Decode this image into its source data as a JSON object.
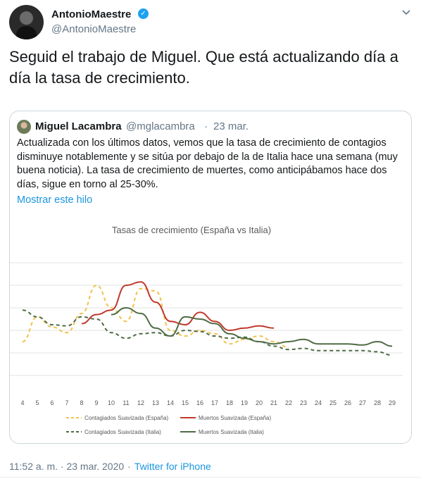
{
  "tweet": {
    "author_name": "AntonioMaestre",
    "author_handle": "@AntonioMaestre",
    "text": "Seguid el trabajo de Miguel. Que está actualizando día a día la tasa de crecimiento.",
    "timestamp": "11:52 a. m. · 23 mar. 2020",
    "separator": "·",
    "source": "Twitter for iPhone"
  },
  "quote": {
    "author_name": "Miguel Lacambra",
    "author_handle": "@mglacambra",
    "dot": "·",
    "date": "23 mar.",
    "text": "Actualizada con los últimos datos, vemos que la tasa de crecimiento de contagios disminuye notablemente y se sitúa por debajo de la de Italia hace una semana (muy buena noticia). La tasa de crecimiento de muertes, como anticipábamos hace dos días, sigue en torno al 25-30%.",
    "show_thread": "Mostrar este hilo"
  },
  "icons": {
    "verified": "verified-badge-icon",
    "menu": "chevron-down-icon"
  },
  "colors": {
    "link": "#1b95e0",
    "verified": "#1da1f2",
    "spain": "#f2c14e",
    "spain_deaths": "#c0392b",
    "italy": "#4f6b45"
  },
  "chart_data": {
    "type": "line",
    "title": "Tasas de crecimiento (España vs Italia)",
    "x": [
      4,
      5,
      6,
      7,
      8,
      9,
      10,
      11,
      12,
      13,
      14,
      15,
      16,
      17,
      18,
      19,
      20,
      21,
      22,
      23,
      24,
      25,
      26,
      27,
      28,
      29
    ],
    "ylim": [
      0,
      100
    ],
    "grid": true,
    "legend_position": "bottom",
    "series": [
      {
        "name": "Contagiados Suavizada (España)",
        "style": "dashed",
        "color": "#f2c14e",
        "values": [
          30,
          52,
          43,
          38,
          55,
          80,
          60,
          48,
          77,
          75,
          40,
          35,
          40,
          37,
          28,
          32,
          35,
          30,
          25,
          null,
          null,
          null,
          null,
          null,
          null,
          null
        ]
      },
      {
        "name": "Muertos Suavizada (España)",
        "style": "solid",
        "color": "#c0392b",
        "values": [
          null,
          null,
          null,
          null,
          46,
          54,
          58,
          80,
          83,
          65,
          48,
          45,
          56,
          48,
          40,
          42,
          44,
          42,
          null,
          null,
          null,
          null,
          null,
          null,
          null,
          null
        ]
      },
      {
        "name": "Contagiados Suavizada (Italia)",
        "style": "dashed",
        "color": "#4f6b45",
        "values": [
          58,
          52,
          45,
          44,
          52,
          50,
          38,
          33,
          37,
          38,
          35,
          40,
          39,
          35,
          33,
          34,
          30,
          26,
          23,
          24,
          22,
          22,
          22,
          22,
          21,
          18
        ]
      },
      {
        "name": "Muertos Suavizada (Italia)",
        "style": "solid",
        "color": "#4f6b45",
        "values": [
          null,
          null,
          null,
          null,
          null,
          null,
          54,
          60,
          55,
          42,
          35,
          52,
          50,
          46,
          37,
          33,
          30,
          28,
          30,
          32,
          28,
          28,
          28,
          27,
          30,
          26
        ]
      }
    ]
  }
}
